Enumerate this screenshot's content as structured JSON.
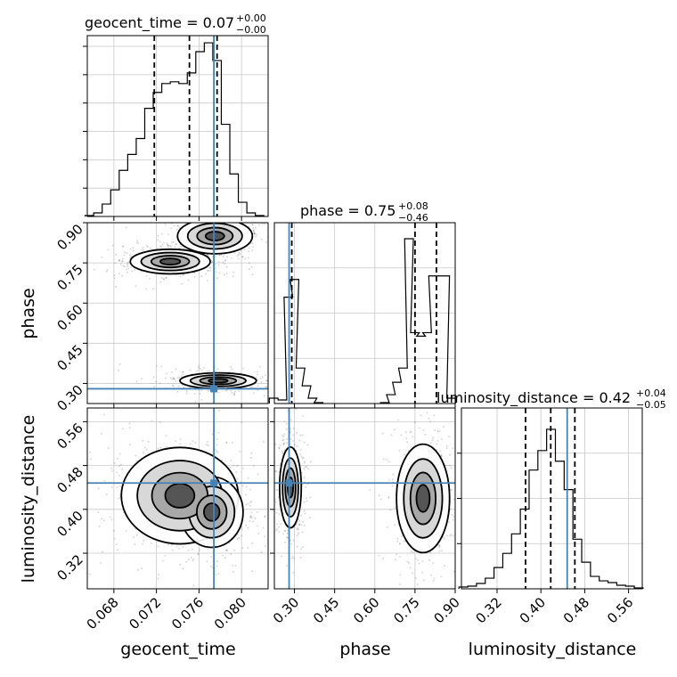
{
  "chart_data": {
    "type": "corner",
    "parameters": [
      {
        "name": "geocent_time",
        "axis_label": "geocent_time",
        "range": [
          0.0655,
          0.0825
        ],
        "ticks": [
          "0.068",
          "0.072",
          "0.076",
          "0.080"
        ],
        "tick_values": [
          0.068,
          0.072,
          0.076,
          0.08
        ],
        "truth": 0.0774,
        "quantiles": [
          0.0718,
          0.0751,
          0.0777
        ],
        "title": {
          "label": "geocent_time = 0.07",
          "plus": "+0.00",
          "minus": "−0.00"
        },
        "histogram": [
          {
            "x": 0.0657,
            "h": 0.005
          },
          {
            "x": 0.0665,
            "h": 0.02
          },
          {
            "x": 0.0673,
            "h": 0.07
          },
          {
            "x": 0.0681,
            "h": 0.15
          },
          {
            "x": 0.0689,
            "h": 0.26
          },
          {
            "x": 0.0697,
            "h": 0.35
          },
          {
            "x": 0.0705,
            "h": 0.44
          },
          {
            "x": 0.0713,
            "h": 0.61
          },
          {
            "x": 0.0721,
            "h": 0.7
          },
          {
            "x": 0.0729,
            "h": 0.75
          },
          {
            "x": 0.0737,
            "h": 0.76
          },
          {
            "x": 0.0745,
            "h": 0.75
          },
          {
            "x": 0.0753,
            "h": 0.81
          },
          {
            "x": 0.0761,
            "h": 0.93
          },
          {
            "x": 0.0769,
            "h": 0.98
          },
          {
            "x": 0.0777,
            "h": 0.88
          },
          {
            "x": 0.0785,
            "h": 0.52
          },
          {
            "x": 0.0793,
            "h": 0.24
          },
          {
            "x": 0.0801,
            "h": 0.08
          },
          {
            "x": 0.0809,
            "h": 0.02
          },
          {
            "x": 0.0817,
            "h": 0.005
          }
        ]
      },
      {
        "name": "phase",
        "axis_label": "phase",
        "range": [
          0.225,
          0.9
        ],
        "ticks": [
          "0.30",
          "0.45",
          "0.60",
          "0.75",
          "0.90"
        ],
        "tick_values": [
          0.3,
          0.45,
          0.6,
          0.75,
          0.9
        ],
        "truth": 0.28,
        "quantiles": [
          0.29,
          0.75,
          0.83
        ],
        "title": {
          "label": "phase = 0.75",
          "plus": "+0.08",
          "minus": "−0.46"
        },
        "histogram": [
          {
            "x": 0.2225,
            "h": 0.03
          },
          {
            "x": 0.255,
            "h": 0.02
          },
          {
            "x": 0.2775,
            "h": 0.6
          },
          {
            "x": 0.3,
            "h": 0.7
          },
          {
            "x": 0.3225,
            "h": 0.2
          },
          {
            "x": 0.345,
            "h": 0.1
          },
          {
            "x": 0.3675,
            "h": 0.03
          },
          {
            "x": 0.39,
            "h": 0.005
          },
          {
            "x": 0.6375,
            "h": 0.005
          },
          {
            "x": 0.66,
            "h": 0.05
          },
          {
            "x": 0.6825,
            "h": 0.12
          },
          {
            "x": 0.705,
            "h": 0.2
          },
          {
            "x": 0.7275,
            "h": 0.93
          },
          {
            "x": 0.75,
            "h": 0.4
          },
          {
            "x": 0.7725,
            "h": 0.38
          },
          {
            "x": 0.795,
            "h": 0.4
          },
          {
            "x": 0.8175,
            "h": 0.72
          },
          {
            "x": 0.84,
            "h": 0.72
          },
          {
            "x": 0.8625,
            "h": 0.72
          },
          {
            "x": 0.885,
            "h": 0.03
          }
        ]
      },
      {
        "name": "luminosity_distance",
        "axis_label": "luminosity_distance",
        "range": [
          0.255,
          0.585
        ],
        "ticks": [
          "0.32",
          "0.40",
          "0.48",
          "0.56"
        ],
        "tick_values": [
          0.32,
          0.4,
          0.48,
          0.56
        ],
        "truth": 0.448,
        "quantiles": [
          0.372,
          0.418,
          0.462
        ],
        "title": {
          "label": "luminosity_distance = 0.42",
          "plus": "+0.04",
          "minus": "−0.05"
        },
        "histogram": [
          {
            "x": 0.2585,
            "h": 0.01
          },
          {
            "x": 0.2745,
            "h": 0.015
          },
          {
            "x": 0.2905,
            "h": 0.03
          },
          {
            "x": 0.3065,
            "h": 0.06
          },
          {
            "x": 0.3225,
            "h": 0.12
          },
          {
            "x": 0.3385,
            "h": 0.2
          },
          {
            "x": 0.3545,
            "h": 0.31
          },
          {
            "x": 0.3705,
            "h": 0.45
          },
          {
            "x": 0.3865,
            "h": 0.67
          },
          {
            "x": 0.4025,
            "h": 0.78
          },
          {
            "x": 0.4185,
            "h": 0.9
          },
          {
            "x": 0.4345,
            "h": 0.72
          },
          {
            "x": 0.4505,
            "h": 0.56
          },
          {
            "x": 0.4665,
            "h": 0.28
          },
          {
            "x": 0.4825,
            "h": 0.15
          },
          {
            "x": 0.4985,
            "h": 0.07
          },
          {
            "x": 0.5145,
            "h": 0.045
          },
          {
            "x": 0.5305,
            "h": 0.035
          },
          {
            "x": 0.5465,
            "h": 0.02
          },
          {
            "x": 0.5625,
            "h": 0.015
          },
          {
            "x": 0.5785,
            "h": 0.005
          }
        ]
      }
    ],
    "density": {
      "geocent_time-phase": {
        "blobs": [
          {
            "cx": 0.0733,
            "cy": 0.755,
            "sx": 0.0018,
            "sy": 0.022,
            "w": 0.9
          },
          {
            "cx": 0.0775,
            "cy": 0.85,
            "sx": 0.0016,
            "sy": 0.03,
            "w": 1.0
          },
          {
            "cx": 0.0778,
            "cy": 0.31,
            "sx": 0.0022,
            "sy": 0.018,
            "w": 0.55
          }
        ]
      },
      "geocent_time-luminosity_distance": {
        "blobs": [
          {
            "cx": 0.0742,
            "cy": 0.425,
            "sx": 0.0025,
            "sy": 0.04,
            "w": 1.0
          },
          {
            "cx": 0.0772,
            "cy": 0.395,
            "sx": 0.0016,
            "sy": 0.035,
            "w": 0.7
          }
        ]
      },
      "phase-luminosity_distance": {
        "blobs": [
          {
            "cx": 0.285,
            "cy": 0.44,
            "sx": 0.022,
            "sy": 0.04,
            "w": 0.7
          },
          {
            "cx": 0.78,
            "cy": 0.42,
            "sx": 0.045,
            "sy": 0.045,
            "w": 1.0
          }
        ]
      }
    },
    "truth_color": "#4682b4",
    "grid": true
  }
}
